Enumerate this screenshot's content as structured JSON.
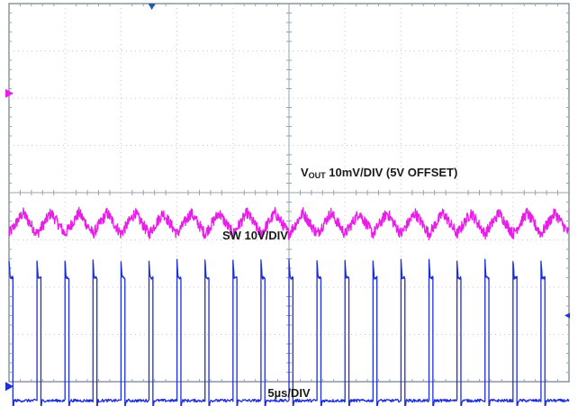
{
  "chart_data": {
    "type": "line",
    "title": "",
    "xlabel": "5µs/DIV",
    "ylabel": "",
    "grid": true,
    "x_divisions": 10,
    "y_divisions": 8,
    "x_unit": "µs",
    "x_per_div": 5,
    "x_range": [
      0,
      50
    ],
    "annotations": [
      {
        "id": "vout",
        "parts": [
          "V",
          "OUT",
          " 10mV/DIV (5V OFFSET)"
        ]
      },
      {
        "id": "sw",
        "text": "SW 10V/DIV"
      }
    ],
    "series": [
      {
        "id": "vout",
        "name": "VOUT 10mV/DIV (5V OFFSET)",
        "color": "#e81ee8",
        "shape": "triangle",
        "volts_per_div": 0.01,
        "offset_v": 5,
        "center_div": -0.65,
        "ripple_pp_div": 0.45,
        "noise_pp_div": 0.12,
        "period_us": 2.5,
        "marker_div": 2.1
      },
      {
        "id": "sw",
        "name": "SW 10V/DIV",
        "color": "#1f2fd6",
        "shape": "square",
        "volts_per_div": 10,
        "high_div": -1.8,
        "low_div": -4.4,
        "period_us": 2.5,
        "duty": 0.14,
        "noise_pp_div": 0.06,
        "marker_div": -4.1
      }
    ],
    "trigger_marker_div": -2.6
  }
}
